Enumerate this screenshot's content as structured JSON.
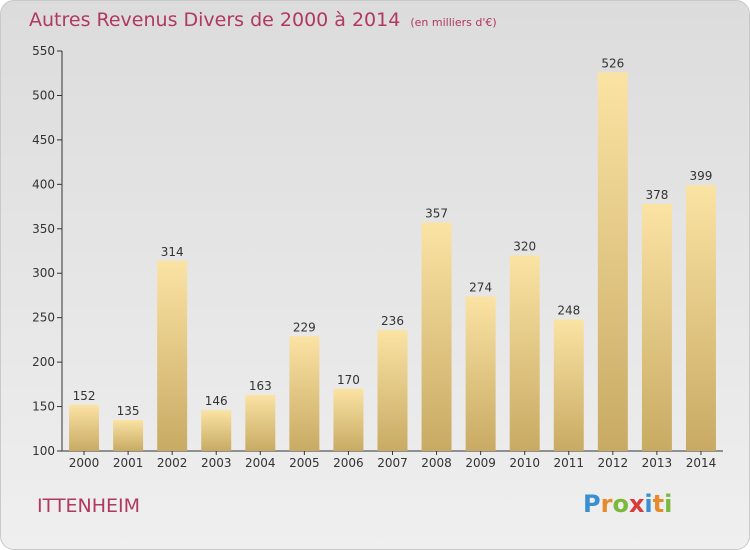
{
  "title": "Autres Revenus Divers de 2000 à 2014",
  "subtitle": "(en milliers d'€)",
  "commune": "ITTENHEIM",
  "logo": {
    "letters": [
      "P",
      "r",
      "o",
      "x",
      "i",
      "t",
      "i"
    ],
    "colors": [
      "#3a8fd0",
      "#e8892a",
      "#7ab93c",
      "#d93a3a",
      "#3a8fd0",
      "#e8892a",
      "#7ab93c"
    ]
  },
  "colors": {
    "title": "#b13860",
    "bar_light": "#fbe3a4",
    "bar_dark": "#c8aa63",
    "axis": "#333333"
  },
  "chart_data": {
    "type": "bar",
    "title": "Autres Revenus Divers de 2000 à 2014",
    "subtitle": "(en milliers d'€)",
    "xlabel": "",
    "ylabel": "",
    "categories": [
      "2000",
      "2001",
      "2002",
      "2003",
      "2004",
      "2005",
      "2006",
      "2007",
      "2008",
      "2009",
      "2010",
      "2011",
      "2012",
      "2013",
      "2014"
    ],
    "values": [
      152,
      135,
      314,
      146,
      163,
      229,
      170,
      236,
      357,
      274,
      320,
      248,
      526,
      378,
      399
    ],
    "ylim": [
      100,
      550
    ],
    "yticks": [
      100,
      150,
      200,
      250,
      300,
      350,
      400,
      450,
      500,
      550
    ],
    "grid": false,
    "legend": "none"
  }
}
